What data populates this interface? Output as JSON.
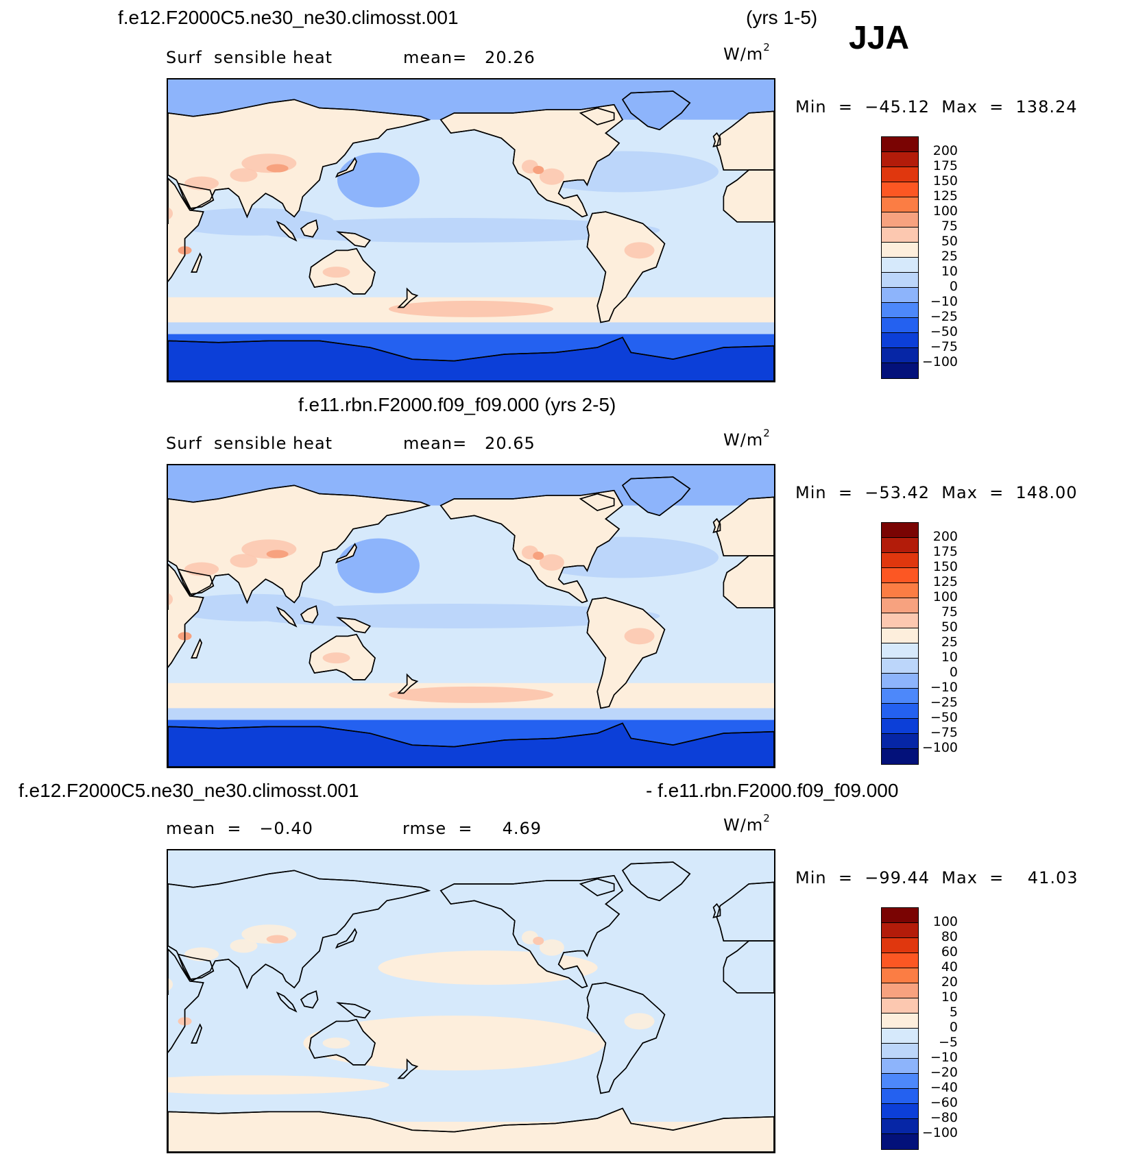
{
  "season": "JJA",
  "units_base": "W/m",
  "units_exp": "2",
  "panels": [
    {
      "case_left": "f.e12.F2000C5.ne30_ne30.climosst.001",
      "case_right": "(yrs 1-5)",
      "variable": "Surf  sensible heat",
      "stat_text": "mean=   20.26",
      "minmax": "Min  =  −45.12  Max  =  138.24",
      "levels": [
        "200",
        "175",
        "150",
        "125",
        "100",
        "75",
        "50",
        "25",
        "10",
        "0",
        "−10",
        "−25",
        "−50",
        "−75",
        "−100"
      ]
    },
    {
      "case_center": "f.e11.rbn.F2000.f09_f09.000 (yrs 2-5)",
      "variable": "Surf  sensible heat",
      "stat_text": "mean=   20.65",
      "minmax": "Min  =  −53.42  Max  =  148.00",
      "levels": [
        "200",
        "175",
        "150",
        "125",
        "100",
        "75",
        "50",
        "25",
        "10",
        "0",
        "−10",
        "−25",
        "−50",
        "−75",
        "−100"
      ]
    },
    {
      "case_left": "f.e12.F2000C5.ne30_ne30.climosst.001",
      "case_right": "- f.e11.rbn.F2000.f09_f09.000",
      "mean_text": "mean  =   −0.40",
      "rmse_text": "rmse  =     4.69",
      "minmax": "Min  =  −99.44  Max  =    41.03",
      "levels": [
        "100",
        "80",
        "60",
        "40",
        "20",
        "10",
        "5",
        "0",
        "−5",
        "−10",
        "−20",
        "−40",
        "−60",
        "−80",
        "−100"
      ]
    }
  ],
  "colorbar_colors": [
    "#7a0403",
    "#b31c0a",
    "#e0370e",
    "#fc5723",
    "#fb7d44",
    "#f7a27f",
    "#fcc8b0",
    "#fdeedc",
    "#d6e9fb",
    "#bcd6fa",
    "#8db4fb",
    "#4d88fa",
    "#2461f0",
    "#0c3fd8",
    "#0626a6",
    "#03117a"
  ]
}
